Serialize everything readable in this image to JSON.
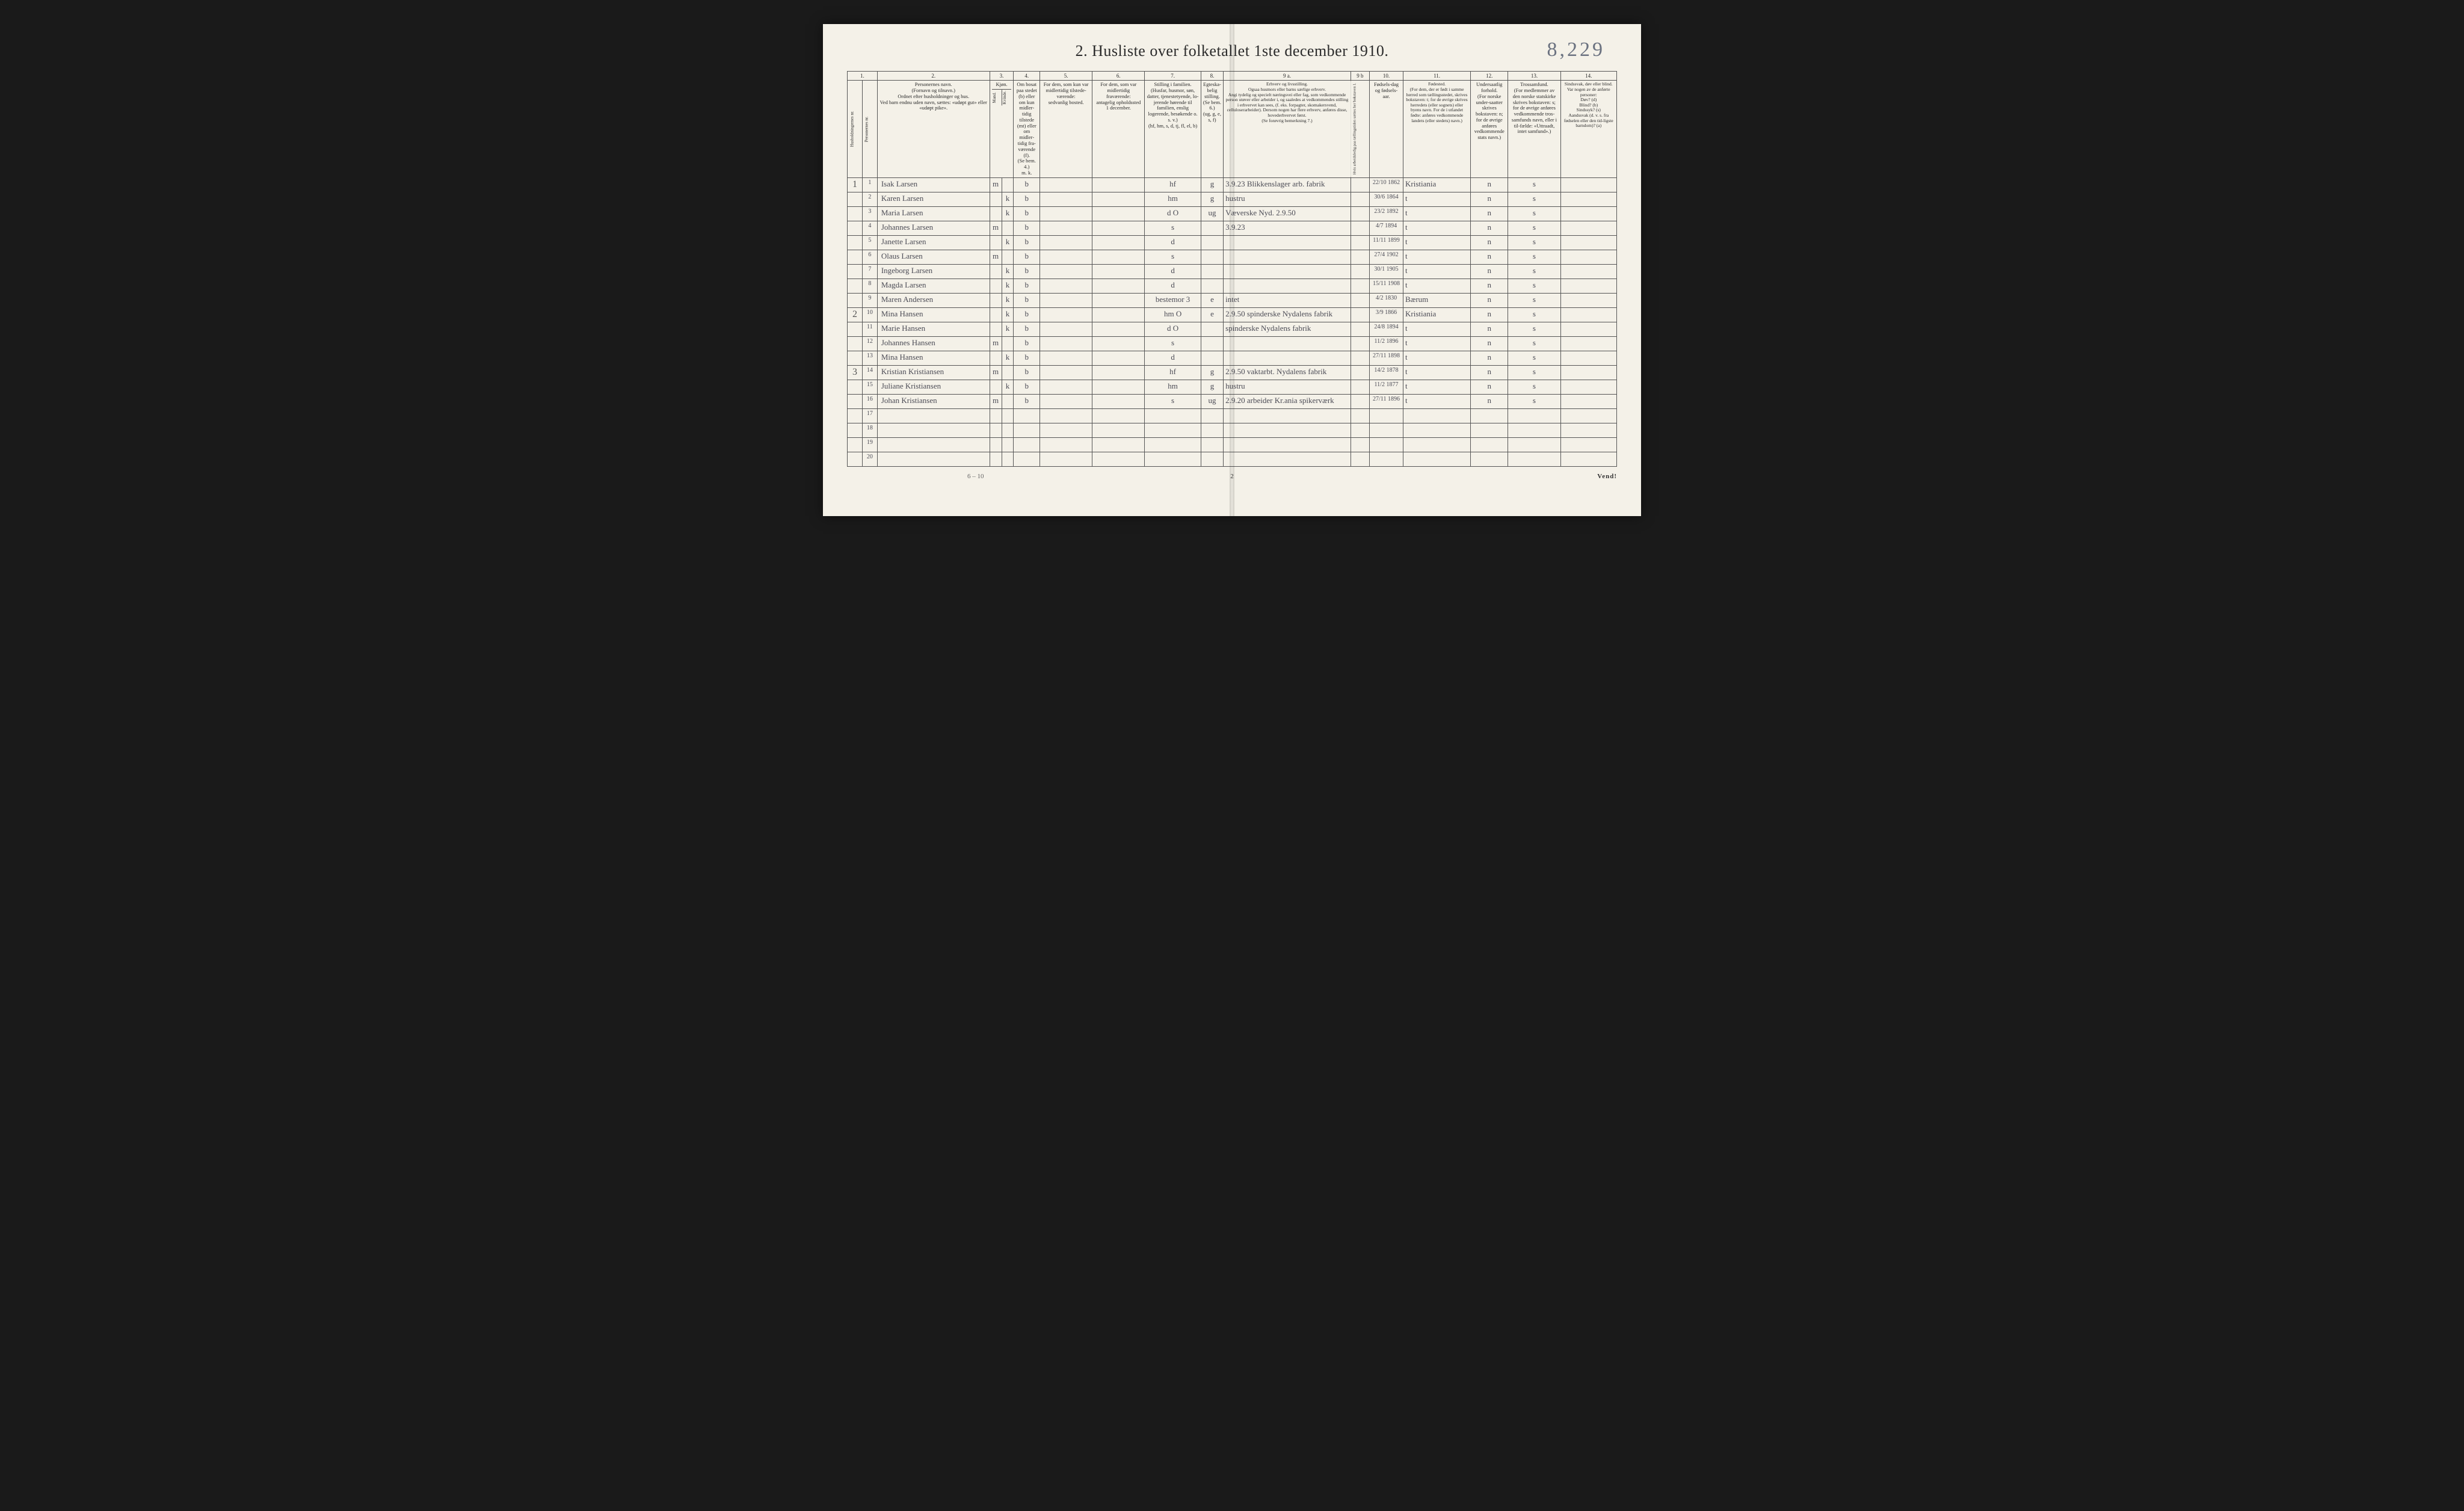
{
  "title": "2.  Husliste over folketallet 1ste december 1910.",
  "page_annotation": "8,229",
  "footer_left": "6 – 10",
  "footer_page": "2",
  "footer_vend": "Vend!",
  "column_numbers": [
    "1.",
    "2.",
    "3.",
    "4.",
    "5.",
    "6.",
    "7.",
    "8.",
    "9 a.",
    "9 b",
    "10.",
    "11.",
    "12.",
    "13.",
    "14."
  ],
  "column_headers": {
    "c1a": "Husholdningernes nr.",
    "c1b": "Personernes nr.",
    "c2": "Personernes navn.\n(Fornavn og tilnavn.)\nOrdnet efter husholdninger og hus.\nVed barn endnu uden navn, sættes: «udøpt gut» eller «udøpt pike».",
    "c3": "Kjøn.",
    "c3a": "Mand.",
    "c3b": "Kvinde.",
    "c4": "Om bosat paa stedet (b) eller om kun midler-tidig tilstede (mt) eller om midler-tidig fra-værende (f).\n(Se bem. 4.)\nm. k.",
    "c5": "For dem, som kun var midlertidig tilstede-værende:\nsedvanlig bosted.",
    "c6": "For dem, som var midlertidig fraværende:\nantagelig opholdssted 1 december.",
    "c7": "Stilling i familien.\n(Husfar, husmor, søn, datter, tjenestetyende, lo-jerende hørende til familien, enslig logerende, besøkende o. s. v.)\n(hf, hm, s, d, tj, fl, el, b)",
    "c8": "Egteska-belig stilling.\n(Se bem. 6.)\n(ug, g, e, s, f)",
    "c9a": "Erhverv og livsstilling.\nOgsaa husmors eller barns særlige erhverv.\nAngi tydelig og specielt næringsvei eller fag, som vedkommende person utøver eller arbeider i, og saaledes at vedkommendes stilling i erhvervet kan sees, (f. eks. forpagter, skomakersvend, celluloserarbeider). Dersom nogen har flere erhverv, anføres disse, hovederhvervet først.\n(Se forøvrig bemerkning 7.)",
    "c9b": "Hvis arbeidsledig paa tællingstiden sættes her bokstaven l.",
    "c10": "Fødsels-dag og fødsels-aar.",
    "c11": "Fødested.\n(For dem, der er født i samme herred som tællingsstedet, skrives bokstaven: t; for de øvrige skrives herredets (eller sognets) eller byens navn. For de i utlandet fødte: anføres vedkommende landets (eller stedets) navn.)",
    "c12": "Undersaatlig forhold.\n(For norske under-saatter skrives bokstaven: n; for de øvrige anføres vedkommende stats navn.)",
    "c13": "Trossamfund.\n(For medlemmer av den norske statskirke skrives bokstaven: s; for de øvrige anføres vedkommende tros-samfunds navn, eller i til-fælde: «Uttraadt, intet samfund».)",
    "c14": "Sindssvak, døv eller blind.\nVar nogen av de anførte personer:\nDøv? (d)\nBlind? (b)\nSindssyk? (s)\nAandssvak (d. v. s. fra fødselen eller den tid-ligste barndom)? (a)"
  },
  "column_widths_pct": {
    "hh": 2.0,
    "pn": 2.0,
    "name": 15.0,
    "m": 1.6,
    "k": 1.6,
    "c4": 3.5,
    "c5": 7.0,
    "c6": 7.0,
    "c7": 7.5,
    "c8": 3.0,
    "c9a": 17.0,
    "c9b": 2.5,
    "c10": 4.5,
    "c11": 9.0,
    "c12": 5.0,
    "c13": 7.0,
    "c14": 7.5
  },
  "households": [
    {
      "row": 1,
      "mark": "1"
    },
    {
      "row": 10,
      "mark": "2"
    },
    {
      "row": 14,
      "mark": "3"
    }
  ],
  "rows": [
    {
      "pn": "1",
      "name": "Isak Larsen",
      "m": "m",
      "k": "",
      "c4": "b",
      "c7": "hf",
      "c8": "g",
      "c9a": "3.9.23  Blikkenslager arb. fabrik",
      "c10": "22/10 1862",
      "c11": "Kristiania",
      "c12": "n",
      "c13": "s"
    },
    {
      "pn": "2",
      "name": "Karen Larsen",
      "m": "",
      "k": "k",
      "c4": "b",
      "c7": "hm",
      "c8": "g",
      "c9a": "hustru",
      "c10": "30/6 1864",
      "c11": "t",
      "c12": "n",
      "c13": "s"
    },
    {
      "pn": "3",
      "name": "Maria Larsen",
      "m": "",
      "k": "k",
      "c4": "b",
      "c7": "d   O",
      "c8": "ug",
      "c9a": "Væverske  Nyd. 2.9.50",
      "c10": "23/2 1892",
      "c11": "t",
      "c12": "n",
      "c13": "s"
    },
    {
      "pn": "4",
      "name": "Johannes Larsen",
      "m": "m",
      "k": "",
      "c4": "b",
      "c7": "s",
      "c8": "",
      "c9a": "3.9.23",
      "c10": "4/7 1894",
      "c11": "t",
      "c12": "n",
      "c13": "s"
    },
    {
      "pn": "5",
      "name": "Janette Larsen",
      "m": "",
      "k": "k",
      "c4": "b",
      "c7": "d",
      "c8": "",
      "c9a": "",
      "c10": "11/11 1899",
      "c11": "t",
      "c12": "n",
      "c13": "s"
    },
    {
      "pn": "6",
      "name": "Olaus Larsen",
      "m": "m",
      "k": "",
      "c4": "b",
      "c7": "s",
      "c8": "",
      "c9a": "",
      "c10": "27/4 1902",
      "c11": "t",
      "c12": "n",
      "c13": "s"
    },
    {
      "pn": "7",
      "name": "Ingeborg Larsen",
      "m": "",
      "k": "k",
      "c4": "b",
      "c7": "d",
      "c8": "",
      "c9a": "",
      "c10": "30/1 1905",
      "c11": "t",
      "c12": "n",
      "c13": "s"
    },
    {
      "pn": "8",
      "name": "Magda Larsen",
      "m": "",
      "k": "k",
      "c4": "b",
      "c7": "d",
      "c8": "",
      "c9a": "",
      "c10": "15/11 1908",
      "c11": "t",
      "c12": "n",
      "c13": "s"
    },
    {
      "pn": "9",
      "name": "Maren Andersen",
      "m": "",
      "k": "k",
      "c4": "b",
      "c7": "bestemor 3",
      "c8": "e",
      "c9a": "intet",
      "c10": "4/2 1830",
      "c11": "Bærum",
      "c12": "n",
      "c13": "s"
    },
    {
      "pn": "10",
      "name": "Mina Hansen",
      "m": "",
      "k": "k",
      "c4": "b",
      "c7": "hm   O",
      "c8": "e",
      "c9a": "2.9.50  spinderske Nydalens fabrik",
      "c10": "3/9 1866",
      "c11": "Kristiania",
      "c12": "n",
      "c13": "s"
    },
    {
      "pn": "11",
      "name": "Marie Hansen",
      "m": "",
      "k": "k",
      "c4": "b",
      "c7": "d   O",
      "c8": "",
      "c9a": "spinderske  Nydalens fabrik",
      "c10": "24/8 1894",
      "c11": "t",
      "c12": "n",
      "c13": "s"
    },
    {
      "pn": "12",
      "name": "Johannes Hansen",
      "m": "m",
      "k": "",
      "c4": "b",
      "c7": "s",
      "c8": "",
      "c9a": "",
      "c10": "11/2 1896",
      "c11": "t",
      "c12": "n",
      "c13": "s"
    },
    {
      "pn": "13",
      "name": "Mina Hansen",
      "m": "",
      "k": "k",
      "c4": "b",
      "c7": "d",
      "c8": "",
      "c9a": "",
      "c10": "27/11 1898",
      "c11": "t",
      "c12": "n",
      "c13": "s"
    },
    {
      "pn": "14",
      "name": "Kristian Kristiansen",
      "m": "m",
      "k": "",
      "c4": "b",
      "c7": "hf",
      "c8": "g",
      "c9a": "2.9.50  vaktarbt. Nydalens fabrik",
      "c10": "14/2 1878",
      "c11": "t",
      "c12": "n",
      "c13": "s"
    },
    {
      "pn": "15",
      "name": "Juliane Kristiansen",
      "m": "",
      "k": "k",
      "c4": "b",
      "c7": "hm",
      "c8": "g",
      "c9a": "hustru",
      "c10": "11/2 1877",
      "c11": "t",
      "c12": "n",
      "c13": "s"
    },
    {
      "pn": "16",
      "name": "Johan Kristiansen",
      "m": "m",
      "k": "",
      "c4": "b",
      "c7": "s",
      "c8": "ug",
      "c9a": "2.9.20  arbeider Kr.ania spikerværk",
      "c10": "27/11 1896",
      "c11": "t",
      "c12": "n",
      "c13": "s"
    },
    {
      "pn": "17",
      "name": "",
      "m": "",
      "k": "",
      "c4": "",
      "c7": "",
      "c8": "",
      "c9a": "",
      "c10": "",
      "c11": "",
      "c12": "",
      "c13": ""
    },
    {
      "pn": "18",
      "name": "",
      "m": "",
      "k": "",
      "c4": "",
      "c7": "",
      "c8": "",
      "c9a": "",
      "c10": "",
      "c11": "",
      "c12": "",
      "c13": ""
    },
    {
      "pn": "19",
      "name": "",
      "m": "",
      "k": "",
      "c4": "",
      "c7": "",
      "c8": "",
      "c9a": "",
      "c10": "",
      "c11": "",
      "c12": "",
      "c13": ""
    },
    {
      "pn": "20",
      "name": "",
      "m": "",
      "k": "",
      "c4": "",
      "c7": "",
      "c8": "",
      "c9a": "",
      "c10": "",
      "c11": "",
      "c12": "",
      "c13": ""
    }
  ]
}
